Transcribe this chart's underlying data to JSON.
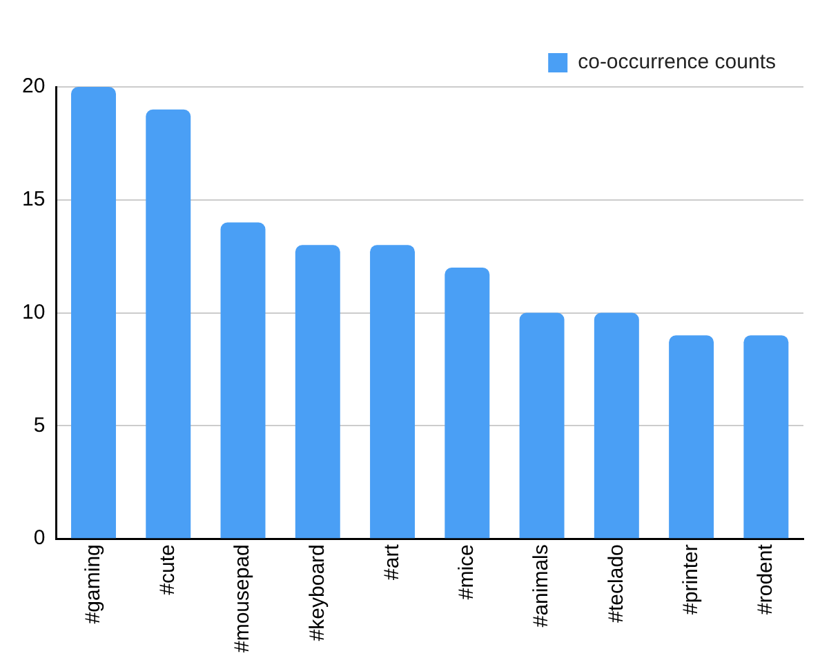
{
  "chart_data": {
    "type": "bar",
    "categories": [
      "#gaming",
      "#cute",
      "#mousepad",
      "#keyboard",
      "#art",
      "#mice",
      "#animals",
      "#teclado",
      "#printer",
      "#rodent"
    ],
    "series": [
      {
        "name": "co-occurrence counts",
        "color": "#4a9ff5",
        "values": [
          20,
          19,
          14,
          13,
          13,
          12,
          10,
          10,
          9,
          9
        ]
      }
    ],
    "ylim": [
      0,
      20
    ],
    "yticks": [
      0,
      5,
      10,
      15,
      20
    ],
    "grid": "y",
    "legend": "top right"
  }
}
